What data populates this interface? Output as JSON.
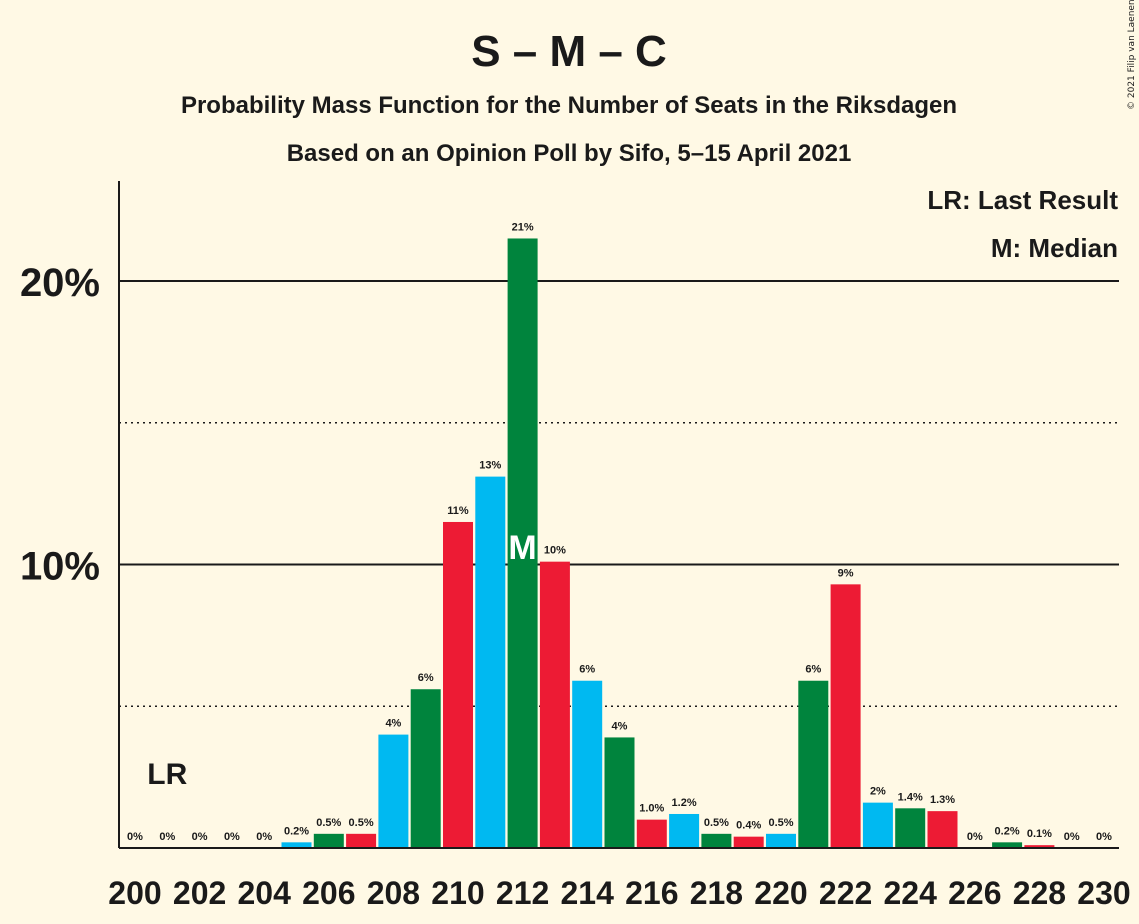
{
  "copyright": "© 2021 Filip van Laenen",
  "chart_data": {
    "type": "bar",
    "title": "S – M – C",
    "subtitle": "Probability Mass Function for the Number of Seats in the Riksdagen",
    "subtitle2": "Based on an Opinion Poll by Sifo, 5–15 April 2021",
    "xlabel": "",
    "ylabel": "",
    "ylim": [
      0,
      23.5
    ],
    "grid": "solid at 10% and 20%, dotted at 5% and 15%",
    "legend": {
      "placement": "top-right",
      "entries": [
        "LR: Last Result",
        "M: Median"
      ]
    },
    "y_ticks": [
      {
        "value": 10,
        "label": "10%"
      },
      {
        "value": 20,
        "label": "20%"
      }
    ],
    "x_tick_labels": [
      "200",
      "202",
      "204",
      "206",
      "208",
      "210",
      "212",
      "214",
      "216",
      "218",
      "220",
      "222",
      "224",
      "226",
      "228",
      "230"
    ],
    "last_result_seat": 201,
    "last_result_label": "LR",
    "median_seat": 212,
    "median_label": "M",
    "colors": {
      "blue": "#00B9F1",
      "green": "#00843D",
      "red": "#ED1B34",
      "background": "#FFF9E5",
      "text": "#1a1a1a"
    },
    "bars": [
      {
        "seat": 200,
        "value": 0,
        "label": "0%",
        "color": "blue"
      },
      {
        "seat": 201,
        "value": 0,
        "label": "0%",
        "color": "green"
      },
      {
        "seat": 202,
        "value": 0,
        "label": "0%",
        "color": "red"
      },
      {
        "seat": 203,
        "value": 0,
        "label": "0%",
        "color": "blue"
      },
      {
        "seat": 204,
        "value": 0,
        "label": "0%",
        "color": "green"
      },
      {
        "seat": 205,
        "value": 0.2,
        "label": "0.2%",
        "color": "blue"
      },
      {
        "seat": 206,
        "value": 0.5,
        "label": "0.5%",
        "color": "green"
      },
      {
        "seat": 207,
        "value": 0.5,
        "label": "0.5%",
        "color": "red"
      },
      {
        "seat": 208,
        "value": 4.0,
        "label": "4%",
        "color": "blue"
      },
      {
        "seat": 209,
        "value": 5.6,
        "label": "6%",
        "color": "green"
      },
      {
        "seat": 210,
        "value": 11.5,
        "label": "11%",
        "color": "red"
      },
      {
        "seat": 211,
        "value": 13.1,
        "label": "13%",
        "color": "blue"
      },
      {
        "seat": 212,
        "value": 21.5,
        "label": "21%",
        "color": "green"
      },
      {
        "seat": 213,
        "value": 10.1,
        "label": "10%",
        "color": "red"
      },
      {
        "seat": 214,
        "value": 5.9,
        "label": "6%",
        "color": "blue"
      },
      {
        "seat": 215,
        "value": 3.9,
        "label": "4%",
        "color": "green"
      },
      {
        "seat": 216,
        "value": 1.0,
        "label": "1.0%",
        "color": "red"
      },
      {
        "seat": 217,
        "value": 1.2,
        "label": "1.2%",
        "color": "blue"
      },
      {
        "seat": 218,
        "value": 0.5,
        "label": "0.5%",
        "color": "green"
      },
      {
        "seat": 219,
        "value": 0.4,
        "label": "0.4%",
        "color": "red"
      },
      {
        "seat": 220,
        "value": 0.5,
        "label": "0.5%",
        "color": "blue"
      },
      {
        "seat": 221,
        "value": 5.9,
        "label": "6%",
        "color": "green"
      },
      {
        "seat": 222,
        "value": 9.3,
        "label": "9%",
        "color": "red"
      },
      {
        "seat": 223,
        "value": 1.6,
        "label": "2%",
        "color": "blue"
      },
      {
        "seat": 224,
        "value": 1.4,
        "label": "1.4%",
        "color": "green"
      },
      {
        "seat": 225,
        "value": 1.3,
        "label": "1.3%",
        "color": "red"
      },
      {
        "seat": 226,
        "value": 0,
        "label": "0%",
        "color": "blue"
      },
      {
        "seat": 227,
        "value": 0.2,
        "label": "0.2%",
        "color": "green"
      },
      {
        "seat": 228,
        "value": 0.1,
        "label": "0.1%",
        "color": "red"
      },
      {
        "seat": 229,
        "value": 0,
        "label": "0%",
        "color": "blue"
      },
      {
        "seat": 230,
        "value": 0,
        "label": "0%",
        "color": "green"
      }
    ]
  }
}
